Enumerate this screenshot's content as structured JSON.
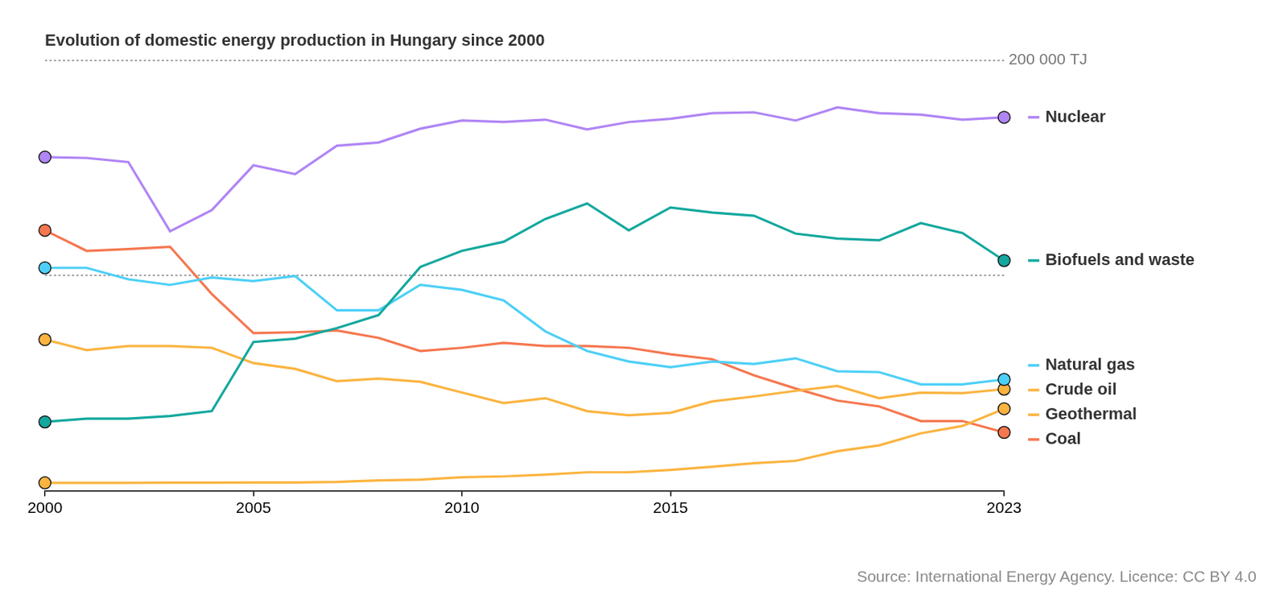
{
  "chart_data": {
    "type": "line",
    "title": "Evolution of domestic energy production in Hungary since 2000",
    "source": "Source: International Energy Agency. Licence: CC BY 4.0",
    "x": [
      2000,
      2001,
      2002,
      2003,
      2004,
      2005,
      2006,
      2007,
      2008,
      2009,
      2010,
      2011,
      2012,
      2013,
      2014,
      2015,
      2016,
      2017,
      2018,
      2019,
      2020,
      2021,
      2022,
      2023
    ],
    "xlim": [
      2000,
      2023
    ],
    "xticks": [
      2000,
      2005,
      2010,
      2015,
      2023
    ],
    "ylim": [
      0,
      200000
    ],
    "yticks": [
      {
        "value": 100000,
        "label": null
      },
      {
        "value": 200000,
        "label": "200 000 TJ"
      }
    ],
    "grid": true,
    "legend": "right",
    "marker": "ends",
    "series": [
      {
        "name": "Nuclear",
        "color": "#b085f5",
        "values": [
          155000,
          154600,
          152700,
          120600,
          130400,
          151200,
          147100,
          160300,
          161800,
          168200,
          172000,
          171300,
          172400,
          167900,
          171300,
          172800,
          175400,
          175800,
          172000,
          178100,
          175400,
          174700,
          172400,
          173500
        ]
      },
      {
        "name": "Biofuels and waste",
        "color": "#13a89e",
        "values": [
          32100,
          33600,
          33600,
          34800,
          37100,
          69200,
          70700,
          75600,
          81700,
          104000,
          111500,
          115700,
          126300,
          133500,
          121000,
          131600,
          129300,
          127800,
          119500,
          117200,
          116400,
          124400,
          119800,
          107000
        ]
      },
      {
        "name": "Natural gas",
        "color": "#4dd0f7",
        "values": [
          103600,
          103600,
          98300,
          95700,
          99100,
          97500,
          99800,
          83900,
          83900,
          95700,
          93400,
          88500,
          74100,
          65000,
          60100,
          57500,
          60100,
          59000,
          61600,
          55600,
          55200,
          49500,
          49500,
          51800
        ]
      },
      {
        "name": "Crude oil",
        "color": "#fbb440",
        "values": [
          70300,
          65400,
          67300,
          67300,
          66500,
          59400,
          56700,
          51000,
          52200,
          50700,
          45700,
          40800,
          43100,
          37100,
          35200,
          36300,
          41600,
          43900,
          46500,
          48800,
          43100,
          45700,
          45400,
          47300
        ]
      },
      {
        "name": "Geothermal",
        "color": "#fbb440",
        "values": [
          3800,
          3800,
          3800,
          3900,
          3900,
          4000,
          4000,
          4200,
          4900,
          5300,
          6400,
          6800,
          7600,
          8700,
          8700,
          9800,
          11300,
          12900,
          14000,
          18500,
          21200,
          26800,
          30200,
          38200
        ]
      },
      {
        "name": "Coal",
        "color": "#f5774f",
        "values": [
          121000,
          111500,
          112300,
          113400,
          91500,
          73300,
          73700,
          74500,
          71100,
          65000,
          66500,
          68800,
          67300,
          67300,
          66500,
          63500,
          61200,
          53700,
          47600,
          42000,
          39300,
          32500,
          32500,
          27200
        ]
      }
    ]
  }
}
